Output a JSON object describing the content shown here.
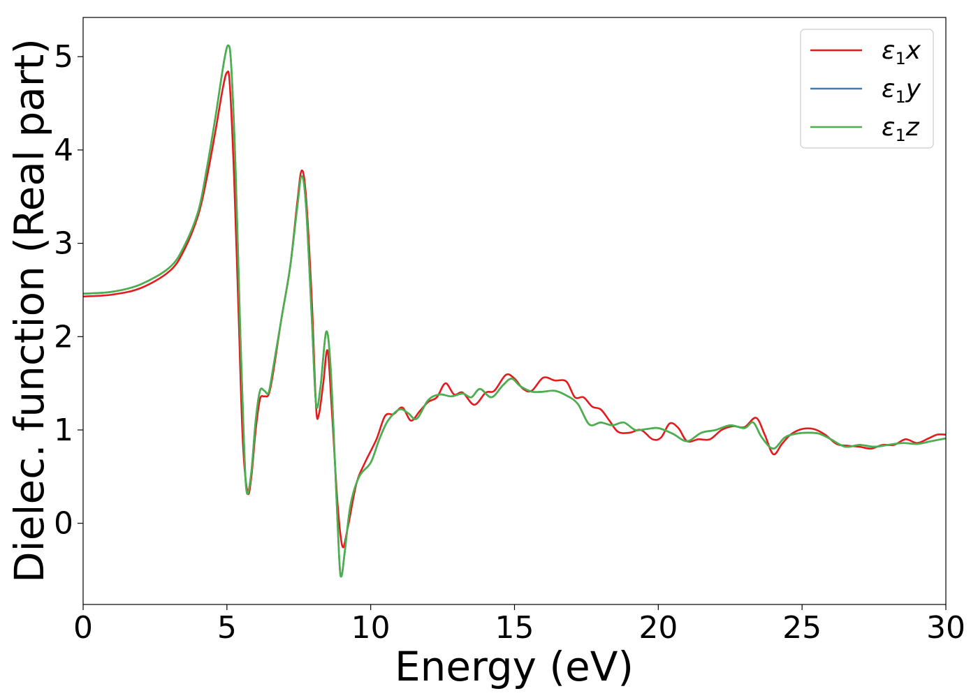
{
  "chart_data": {
    "type": "line",
    "title": "",
    "xlabel": "Energy (eV)",
    "ylabel": "Dielec. function (Real part)",
    "xlim": [
      0,
      30
    ],
    "ylim": [
      -0.87,
      5.42
    ],
    "xticks": [
      0,
      5,
      10,
      15,
      20,
      25,
      30
    ],
    "yticks": [
      0,
      1,
      2,
      3,
      4,
      5
    ],
    "grid": false,
    "legend_position": "top-right",
    "legend_entries": [
      {
        "symbol": "ε",
        "sub": "1",
        "var": "x"
      },
      {
        "symbol": "ε",
        "sub": "1",
        "var": "y"
      },
      {
        "symbol": "ε",
        "sub": "1",
        "var": "z"
      }
    ],
    "series": [
      {
        "name": "ε1x",
        "color": "#e41a1c",
        "points": [
          [
            0,
            2.43
          ],
          [
            1,
            2.45
          ],
          [
            2,
            2.52
          ],
          [
            3,
            2.7
          ],
          [
            3.5,
            2.92
          ],
          [
            4,
            3.3
          ],
          [
            4.3,
            3.7
          ],
          [
            4.6,
            4.2
          ],
          [
            4.85,
            4.65
          ],
          [
            5.0,
            4.83
          ],
          [
            5.1,
            4.7
          ],
          [
            5.25,
            3.7
          ],
          [
            5.4,
            2.3
          ],
          [
            5.55,
            0.9
          ],
          [
            5.72,
            0.33
          ],
          [
            5.85,
            0.5
          ],
          [
            6.0,
            1.0
          ],
          [
            6.15,
            1.33
          ],
          [
            6.3,
            1.36
          ],
          [
            6.45,
            1.38
          ],
          [
            6.6,
            1.6
          ],
          [
            6.9,
            2.2
          ],
          [
            7.2,
            2.75
          ],
          [
            7.45,
            3.45
          ],
          [
            7.6,
            3.78
          ],
          [
            7.75,
            3.5
          ],
          [
            7.95,
            2.4
          ],
          [
            8.1,
            1.25
          ],
          [
            8.2,
            1.17
          ],
          [
            8.35,
            1.5
          ],
          [
            8.5,
            1.85
          ],
          [
            8.65,
            1.2
          ],
          [
            8.85,
            0.2
          ],
          [
            9.02,
            -0.25
          ],
          [
            9.2,
            -0.05
          ],
          [
            9.5,
            0.42
          ],
          [
            9.8,
            0.65
          ],
          [
            10.2,
            0.9
          ],
          [
            10.5,
            1.15
          ],
          [
            10.8,
            1.17
          ],
          [
            11.1,
            1.24
          ],
          [
            11.4,
            1.1
          ],
          [
            11.7,
            1.2
          ],
          [
            12.0,
            1.3
          ],
          [
            12.3,
            1.35
          ],
          [
            12.6,
            1.5
          ],
          [
            12.9,
            1.38
          ],
          [
            13.2,
            1.4
          ],
          [
            13.6,
            1.27
          ],
          [
            14.0,
            1.4
          ],
          [
            14.3,
            1.42
          ],
          [
            14.7,
            1.59
          ],
          [
            15.0,
            1.55
          ],
          [
            15.3,
            1.44
          ],
          [
            15.6,
            1.42
          ],
          [
            16.0,
            1.56
          ],
          [
            16.4,
            1.53
          ],
          [
            16.8,
            1.52
          ],
          [
            17.1,
            1.35
          ],
          [
            17.4,
            1.35
          ],
          [
            17.7,
            1.25
          ],
          [
            18.0,
            1.22
          ],
          [
            18.3,
            1.1
          ],
          [
            18.6,
            0.98
          ],
          [
            19.0,
            0.97
          ],
          [
            19.4,
            1.0
          ],
          [
            19.8,
            0.9
          ],
          [
            20.1,
            0.92
          ],
          [
            20.4,
            1.07
          ],
          [
            20.7,
            1.02
          ],
          [
            21.0,
            0.88
          ],
          [
            21.4,
            0.9
          ],
          [
            21.8,
            0.9
          ],
          [
            22.2,
            1.0
          ],
          [
            22.6,
            1.04
          ],
          [
            23.0,
            1.03
          ],
          [
            23.4,
            1.13
          ],
          [
            23.7,
            0.95
          ],
          [
            24.0,
            0.74
          ],
          [
            24.3,
            0.85
          ],
          [
            24.6,
            0.95
          ],
          [
            25.0,
            1.01
          ],
          [
            25.4,
            1.01
          ],
          [
            25.8,
            0.95
          ],
          [
            26.2,
            0.85
          ],
          [
            26.6,
            0.83
          ],
          [
            27.0,
            0.82
          ],
          [
            27.4,
            0.8
          ],
          [
            27.8,
            0.84
          ],
          [
            28.2,
            0.84
          ],
          [
            28.6,
            0.9
          ],
          [
            29.0,
            0.86
          ],
          [
            29.4,
            0.91
          ],
          [
            29.7,
            0.95
          ],
          [
            30.0,
            0.95
          ]
        ]
      },
      {
        "name": "ε1y",
        "color": "#377eb8",
        "points": [
          [
            0,
            2.46
          ],
          [
            1,
            2.48
          ],
          [
            2,
            2.56
          ],
          [
            3,
            2.74
          ],
          [
            3.5,
            2.96
          ],
          [
            4,
            3.34
          ],
          [
            4.3,
            3.8
          ],
          [
            4.6,
            4.35
          ],
          [
            4.9,
            4.95
          ],
          [
            5.05,
            5.12
          ],
          [
            5.15,
            4.9
          ],
          [
            5.3,
            3.8
          ],
          [
            5.45,
            2.2
          ],
          [
            5.6,
            0.8
          ],
          [
            5.7,
            0.32
          ],
          [
            5.85,
            0.55
          ],
          [
            6.0,
            1.1
          ],
          [
            6.15,
            1.42
          ],
          [
            6.3,
            1.42
          ],
          [
            6.45,
            1.4
          ],
          [
            6.6,
            1.65
          ],
          [
            6.9,
            2.2
          ],
          [
            7.2,
            2.75
          ],
          [
            7.45,
            3.4
          ],
          [
            7.6,
            3.72
          ],
          [
            7.75,
            3.4
          ],
          [
            7.95,
            2.2
          ],
          [
            8.1,
            1.28
          ],
          [
            8.25,
            1.45
          ],
          [
            8.45,
            2.05
          ],
          [
            8.6,
            1.7
          ],
          [
            8.75,
            0.7
          ],
          [
            8.9,
            -0.35
          ],
          [
            8.98,
            -0.57
          ],
          [
            9.1,
            -0.3
          ],
          [
            9.3,
            0.2
          ],
          [
            9.6,
            0.5
          ],
          [
            10.0,
            0.65
          ],
          [
            10.3,
            0.9
          ],
          [
            10.6,
            1.1
          ],
          [
            11.0,
            1.22
          ],
          [
            11.3,
            1.18
          ],
          [
            11.6,
            1.12
          ],
          [
            12.0,
            1.32
          ],
          [
            12.4,
            1.38
          ],
          [
            12.8,
            1.36
          ],
          [
            13.2,
            1.39
          ],
          [
            13.5,
            1.35
          ],
          [
            13.8,
            1.44
          ],
          [
            14.2,
            1.35
          ],
          [
            14.6,
            1.48
          ],
          [
            14.9,
            1.55
          ],
          [
            15.2,
            1.47
          ],
          [
            15.6,
            1.41
          ],
          [
            16.0,
            1.41
          ],
          [
            16.4,
            1.42
          ],
          [
            16.8,
            1.37
          ],
          [
            17.2,
            1.28
          ],
          [
            17.6,
            1.06
          ],
          [
            18.0,
            1.08
          ],
          [
            18.4,
            1.05
          ],
          [
            18.8,
            1.08
          ],
          [
            19.2,
            1.0
          ],
          [
            19.6,
            1.01
          ],
          [
            20.0,
            1.02
          ],
          [
            20.5,
            0.96
          ],
          [
            21.0,
            0.88
          ],
          [
            21.5,
            0.97
          ],
          [
            22.0,
            1.0
          ],
          [
            22.5,
            1.05
          ],
          [
            23.0,
            1.02
          ],
          [
            23.3,
            1.08
          ],
          [
            23.6,
            0.92
          ],
          [
            24.0,
            0.8
          ],
          [
            24.4,
            0.92
          ],
          [
            24.8,
            0.96
          ],
          [
            25.2,
            0.97
          ],
          [
            25.6,
            0.96
          ],
          [
            26.0,
            0.9
          ],
          [
            26.5,
            0.82
          ],
          [
            27.0,
            0.84
          ],
          [
            27.5,
            0.82
          ],
          [
            28.0,
            0.84
          ],
          [
            28.5,
            0.86
          ],
          [
            29.0,
            0.85
          ],
          [
            29.5,
            0.88
          ],
          [
            30.0,
            0.91
          ]
        ]
      },
      {
        "name": "ε1z",
        "color": "#4daf4a",
        "points": [
          [
            0,
            2.46
          ],
          [
            1,
            2.48
          ],
          [
            2,
            2.56
          ],
          [
            3,
            2.74
          ],
          [
            3.5,
            2.96
          ],
          [
            4,
            3.34
          ],
          [
            4.3,
            3.8
          ],
          [
            4.6,
            4.35
          ],
          [
            4.9,
            4.95
          ],
          [
            5.05,
            5.12
          ],
          [
            5.15,
            4.9
          ],
          [
            5.3,
            3.8
          ],
          [
            5.45,
            2.2
          ],
          [
            5.6,
            0.8
          ],
          [
            5.7,
            0.32
          ],
          [
            5.85,
            0.55
          ],
          [
            6.0,
            1.1
          ],
          [
            6.15,
            1.42
          ],
          [
            6.3,
            1.42
          ],
          [
            6.45,
            1.4
          ],
          [
            6.6,
            1.65
          ],
          [
            6.9,
            2.2
          ],
          [
            7.2,
            2.75
          ],
          [
            7.45,
            3.4
          ],
          [
            7.6,
            3.72
          ],
          [
            7.75,
            3.4
          ],
          [
            7.95,
            2.2
          ],
          [
            8.1,
            1.28
          ],
          [
            8.25,
            1.45
          ],
          [
            8.45,
            2.05
          ],
          [
            8.6,
            1.7
          ],
          [
            8.75,
            0.7
          ],
          [
            8.9,
            -0.35
          ],
          [
            8.98,
            -0.57
          ],
          [
            9.1,
            -0.3
          ],
          [
            9.3,
            0.2
          ],
          [
            9.6,
            0.5
          ],
          [
            10.0,
            0.65
          ],
          [
            10.3,
            0.9
          ],
          [
            10.6,
            1.1
          ],
          [
            11.0,
            1.22
          ],
          [
            11.3,
            1.18
          ],
          [
            11.6,
            1.12
          ],
          [
            12.0,
            1.32
          ],
          [
            12.4,
            1.38
          ],
          [
            12.8,
            1.36
          ],
          [
            13.2,
            1.39
          ],
          [
            13.5,
            1.35
          ],
          [
            13.8,
            1.44
          ],
          [
            14.2,
            1.35
          ],
          [
            14.6,
            1.48
          ],
          [
            14.9,
            1.55
          ],
          [
            15.2,
            1.47
          ],
          [
            15.6,
            1.41
          ],
          [
            16.0,
            1.41
          ],
          [
            16.4,
            1.42
          ],
          [
            16.8,
            1.37
          ],
          [
            17.2,
            1.28
          ],
          [
            17.6,
            1.06
          ],
          [
            18.0,
            1.08
          ],
          [
            18.4,
            1.05
          ],
          [
            18.8,
            1.08
          ],
          [
            19.2,
            1.0
          ],
          [
            19.6,
            1.01
          ],
          [
            20.0,
            1.02
          ],
          [
            20.5,
            0.96
          ],
          [
            21.0,
            0.88
          ],
          [
            21.5,
            0.97
          ],
          [
            22.0,
            1.0
          ],
          [
            22.5,
            1.05
          ],
          [
            23.0,
            1.02
          ],
          [
            23.3,
            1.08
          ],
          [
            23.6,
            0.92
          ],
          [
            24.0,
            0.8
          ],
          [
            24.4,
            0.92
          ],
          [
            24.8,
            0.96
          ],
          [
            25.2,
            0.97
          ],
          [
            25.6,
            0.96
          ],
          [
            26.0,
            0.9
          ],
          [
            26.5,
            0.82
          ],
          [
            27.0,
            0.84
          ],
          [
            27.5,
            0.82
          ],
          [
            28.0,
            0.84
          ],
          [
            28.5,
            0.86
          ],
          [
            29.0,
            0.85
          ],
          [
            29.5,
            0.88
          ],
          [
            30.0,
            0.91
          ]
        ]
      }
    ]
  }
}
